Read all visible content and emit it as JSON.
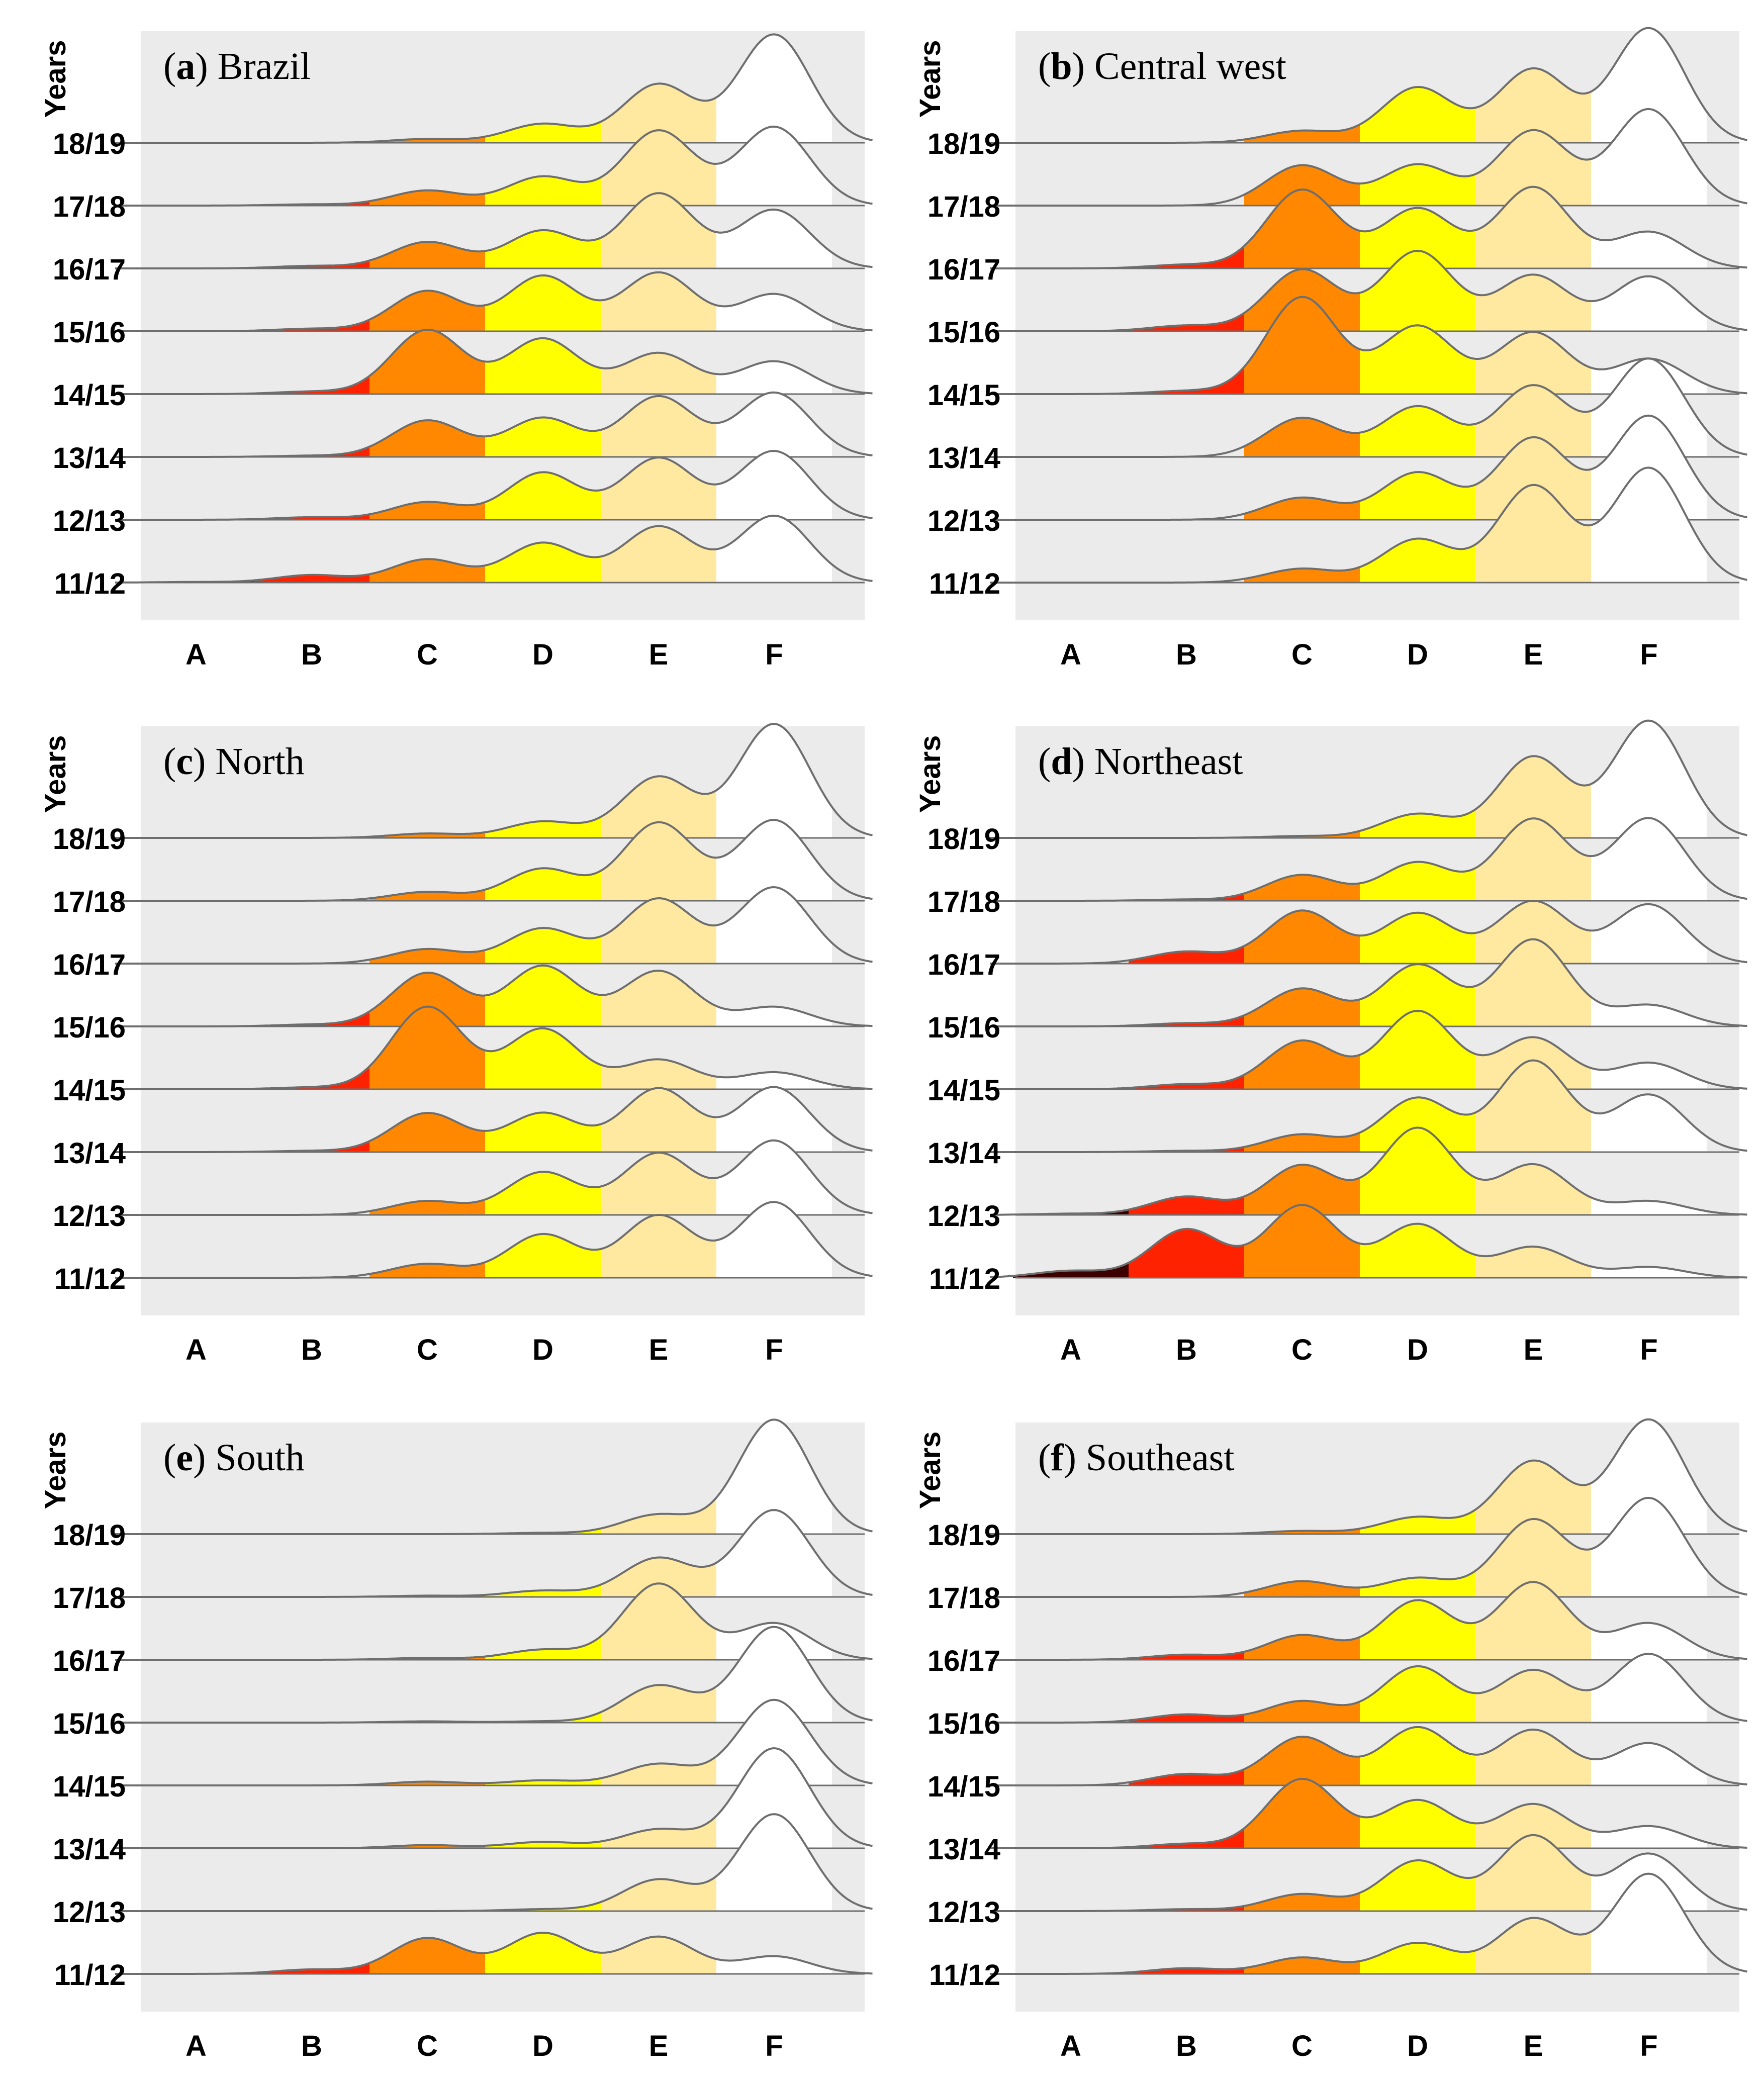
{
  "figure": {
    "axis_title": "Years",
    "colors": {
      "A": "#3d0000",
      "B": "#ff2200",
      "C": "#ff8800",
      "D": "#ffff00",
      "E": "#ffe8a0",
      "F": "#ffffff",
      "panel_bg": "#ebebeb",
      "outline": "#6e6e6e"
    }
  },
  "chart_data": [
    {
      "type": "ridgeline",
      "panel_letter": "a",
      "panel_name": "Brazil",
      "categories": [
        "A",
        "B",
        "C",
        "D",
        "E",
        "F"
      ],
      "series": [
        {
          "name": "18/19",
          "values": [
            0,
            0,
            0.06,
            0.3,
            0.93,
            1.72
          ]
        },
        {
          "name": "17/18",
          "values": [
            0,
            0.02,
            0.24,
            0.46,
            1.19,
            1.25
          ]
        },
        {
          "name": "16/17",
          "values": [
            0,
            0.04,
            0.42,
            0.6,
            1.19,
            0.93
          ]
        },
        {
          "name": "15/16",
          "values": [
            0,
            0.04,
            0.64,
            0.88,
            0.93,
            0.59
          ]
        },
        {
          "name": "14/15",
          "values": [
            0,
            0.04,
            1.02,
            0.88,
            0.65,
            0.52
          ]
        },
        {
          "name": "13/14",
          "values": [
            0,
            0.02,
            0.58,
            0.62,
            0.96,
            1.02
          ]
        },
        {
          "name": "12/13",
          "values": [
            0,
            0.04,
            0.28,
            0.75,
            0.98,
            1.09
          ]
        },
        {
          "name": "11/12",
          "values": [
            0.01,
            0.12,
            0.37,
            0.63,
            0.89,
            1.06
          ]
        }
      ]
    },
    {
      "type": "ridgeline",
      "panel_letter": "b",
      "panel_name": "Central west",
      "categories": [
        "A",
        "B",
        "C",
        "D",
        "E",
        "F"
      ],
      "series": [
        {
          "name": "18/19",
          "values": [
            0,
            0,
            0.19,
            0.88,
            1.17,
            1.82
          ]
        },
        {
          "name": "17/18",
          "values": [
            0,
            0,
            0.64,
            0.65,
            1.19,
            1.53
          ]
        },
        {
          "name": "16/17",
          "values": [
            0,
            0.06,
            1.25,
            0.95,
            1.29,
            0.58
          ]
        },
        {
          "name": "15/16",
          "values": [
            0,
            0.09,
            0.98,
            1.27,
            0.89,
            0.87
          ]
        },
        {
          "name": "14/15",
          "values": [
            0,
            0.05,
            1.54,
            1.08,
            0.98,
            0.56
          ]
        },
        {
          "name": "13/14",
          "values": [
            0,
            0,
            0.62,
            0.8,
            1.13,
            1.56
          ]
        },
        {
          "name": "12/13",
          "values": [
            0,
            0,
            0.35,
            0.75,
            1.3,
            1.65
          ]
        },
        {
          "name": "11/12",
          "values": [
            0,
            0,
            0.22,
            0.69,
            1.54,
            1.82
          ]
        }
      ]
    },
    {
      "type": "ridgeline",
      "panel_letter": "c",
      "panel_name": "North",
      "categories": [
        "A",
        "B",
        "C",
        "D",
        "E",
        "F"
      ],
      "series": [
        {
          "name": "18/19",
          "values": [
            0,
            0,
            0.07,
            0.26,
            0.97,
            1.81
          ]
        },
        {
          "name": "17/18",
          "values": [
            0,
            0,
            0.14,
            0.51,
            1.24,
            1.28
          ]
        },
        {
          "name": "16/17",
          "values": [
            0,
            0,
            0.23,
            0.56,
            1.03,
            1.21
          ]
        },
        {
          "name": "15/16",
          "values": [
            0,
            0.03,
            0.85,
            0.96,
            0.88,
            0.31
          ]
        },
        {
          "name": "14/15",
          "values": [
            0,
            0.03,
            1.31,
            0.96,
            0.47,
            0.27
          ]
        },
        {
          "name": "13/14",
          "values": [
            0,
            0.02,
            0.62,
            0.62,
            1.01,
            1.03
          ]
        },
        {
          "name": "12/13",
          "values": [
            0,
            0,
            0.22,
            0.68,
            0.98,
            1.18
          ]
        },
        {
          "name": "11/12",
          "values": [
            0,
            0,
            0.22,
            0.69,
            0.99,
            1.2
          ]
        }
      ]
    },
    {
      "type": "ridgeline",
      "panel_letter": "d",
      "panel_name": "Northeast",
      "categories": [
        "A",
        "B",
        "C",
        "D",
        "E",
        "F"
      ],
      "series": [
        {
          "name": "18/19",
          "values": [
            0,
            0,
            0.03,
            0.38,
            1.29,
            1.86
          ]
        },
        {
          "name": "17/18",
          "values": [
            0,
            0.02,
            0.41,
            0.61,
            1.3,
            1.31
          ]
        },
        {
          "name": "16/17",
          "values": [
            0,
            0.19,
            0.84,
            0.8,
            0.99,
            0.94
          ]
        },
        {
          "name": "15/16",
          "values": [
            0,
            0.05,
            0.6,
            0.98,
            1.38,
            0.34
          ]
        },
        {
          "name": "14/15",
          "values": [
            0,
            0.08,
            0.77,
            1.24,
            0.82,
            0.42
          ]
        },
        {
          "name": "13/14",
          "values": [
            0,
            0.02,
            0.28,
            0.86,
            1.45,
            0.91
          ]
        },
        {
          "name": "12/13",
          "values": [
            0.02,
            0.29,
            0.79,
            1.38,
            0.8,
            0.22
          ]
        },
        {
          "name": "11/12",
          "values": [
            0.11,
            0.77,
            1.15,
            0.85,
            0.49,
            0.17
          ]
        }
      ]
    },
    {
      "type": "ridgeline",
      "panel_letter": "e",
      "panel_name": "South",
      "categories": [
        "A",
        "B",
        "C",
        "D",
        "E",
        "F"
      ],
      "series": [
        {
          "name": "18/19",
          "values": [
            0,
            0,
            0,
            0.02,
            0.31,
            1.82
          ]
        },
        {
          "name": "17/18",
          "values": [
            0,
            0,
            0.02,
            0.1,
            0.62,
            1.38
          ]
        },
        {
          "name": "16/17",
          "values": [
            0,
            0,
            0.03,
            0.16,
            1.21,
            0.58
          ]
        },
        {
          "name": "15/16",
          "values": [
            0,
            0,
            0.02,
            0.02,
            0.59,
            1.52
          ]
        },
        {
          "name": "14/15",
          "values": [
            0,
            0,
            0.06,
            0.08,
            0.34,
            1.36
          ]
        },
        {
          "name": "13/14",
          "values": [
            0,
            0,
            0.05,
            0.1,
            0.3,
            1.59
          ]
        },
        {
          "name": "12/13",
          "values": [
            0,
            0,
            0,
            0.03,
            0.5,
            1.54
          ]
        },
        {
          "name": "11/12",
          "values": [
            0,
            0.07,
            0.57,
            0.65,
            0.59,
            0.28
          ]
        }
      ]
    },
    {
      "type": "ridgeline",
      "panel_letter": "f",
      "panel_name": "Southeast",
      "categories": [
        "A",
        "B",
        "C",
        "D",
        "E",
        "F"
      ],
      "series": [
        {
          "name": "18/19",
          "values": [
            0,
            0,
            0.05,
            0.27,
            1.16,
            1.82
          ]
        },
        {
          "name": "17/18",
          "values": [
            0,
            0,
            0.25,
            0.3,
            1.23,
            1.57
          ]
        },
        {
          "name": "16/17",
          "values": [
            0,
            0.08,
            0.39,
            0.94,
            1.23,
            0.58
          ]
        },
        {
          "name": "15/16",
          "values": [
            0,
            0.13,
            0.34,
            0.89,
            0.83,
            1.09
          ]
        },
        {
          "name": "14/15",
          "values": [
            0,
            0.18,
            0.77,
            0.92,
            0.88,
            0.67
          ]
        },
        {
          "name": "13/14",
          "values": [
            0,
            0.07,
            1.1,
            0.76,
            0.7,
            0.35
          ]
        },
        {
          "name": "12/13",
          "values": [
            0,
            0.03,
            0.27,
            0.8,
            1.2,
            0.91
          ]
        },
        {
          "name": "11/12",
          "values": [
            0,
            0.09,
            0.26,
            0.49,
            0.88,
            1.59
          ]
        }
      ]
    }
  ]
}
